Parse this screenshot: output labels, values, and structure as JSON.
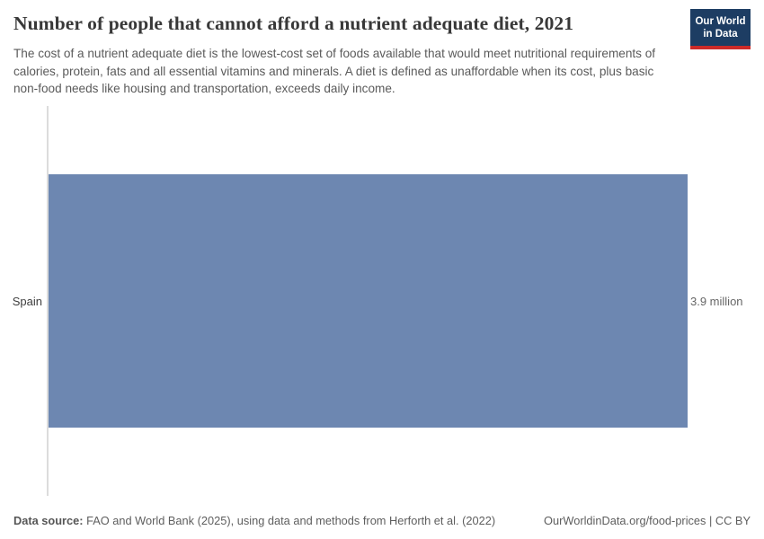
{
  "header": {
    "title": "Number of people that cannot afford a nutrient adequate diet, 2021",
    "subtitle": "The cost of a nutrient adequate diet is the lowest-cost set of foods available that would meet nutritional requirements of calories, protein, fats and all essential vitamins and minerals. A diet is defined as unaffordable when its cost, plus basic non-food needs like housing and transportation, exceeds daily income."
  },
  "logo": {
    "line1": "Our World",
    "line2": "in Data",
    "bg_color": "#1d3d63",
    "accent_color": "#cc2a28"
  },
  "chart_data": {
    "type": "bar",
    "orientation": "horizontal",
    "title": "Number of people that cannot afford a nutrient adequate diet, 2021",
    "categories": [
      "Spain"
    ],
    "values": [
      3.9
    ],
    "unit": "million",
    "value_labels": [
      "3.9 million"
    ],
    "xlim": [
      0,
      3.9
    ],
    "bar_color": "#6d87b1",
    "axis_line_color": "#dcdcdc",
    "grid": false,
    "legend": "none"
  },
  "footer": {
    "data_source_label": "Data source:",
    "data_source_text": "FAO and World Bank (2025), using data and methods from Herforth et al. (2022)",
    "link_text": "OurWorldinData.org/food-prices | CC BY"
  }
}
